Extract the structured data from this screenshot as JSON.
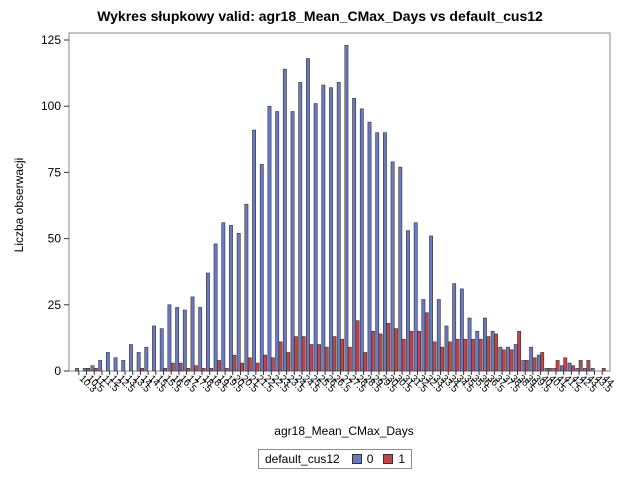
{
  "chart_data": {
    "type": "bar",
    "title": "Wykres słupkowy valid: agr18_Mean_CMax_Days vs default_cus12",
    "xlabel": "agr18_Mean_CMax_Days",
    "ylabel": "Liczba obserwacji",
    "ylim": [
      0,
      125
    ],
    "yticks": [
      0,
      25,
      50,
      75,
      100,
      125
    ],
    "grid": false,
    "legend": {
      "title": "default_cus12",
      "position": "bottom"
    },
    "categories": [
      "10.3",
      "10.5",
      "11",
      "11.5",
      "12",
      "12.5",
      "13",
      "13.5",
      "14",
      "14.5",
      "15",
      "15.5",
      "16",
      "16.5",
      "17",
      "17.5",
      "18",
      "18.5",
      "19",
      "19.5",
      "20",
      "20.5",
      "21",
      "21.5",
      "22",
      "22.5",
      "23",
      "23.5",
      "24",
      "24.5",
      "25",
      "25.5",
      "26",
      "26.5",
      "27",
      "27.5",
      "28",
      "28.5",
      "29",
      "29.5",
      "30",
      "30.5",
      "31",
      "31.5",
      "32",
      "32.5",
      "33",
      "33.5",
      "34",
      "34.5",
      "35",
      "35.5",
      "36",
      "36.5",
      "37",
      "37.5",
      "38",
      "38.5",
      "39",
      "39.5",
      "40",
      "40.5",
      "41",
      "41.5",
      "42",
      "42.5",
      "43",
      "43.5",
      "44"
    ],
    "series": [
      {
        "name": "0",
        "color": "#6a7ac2",
        "values": [
          1,
          1,
          2,
          4,
          7,
          5,
          4,
          10,
          7,
          9,
          17,
          16,
          25,
          24,
          23,
          28,
          24,
          37,
          48,
          56,
          55,
          52,
          63,
          91,
          78,
          100,
          98,
          114,
          98,
          109,
          118,
          101,
          108,
          107,
          109,
          123,
          103,
          99,
          94,
          90,
          90,
          79,
          77,
          53,
          56,
          27,
          51,
          27,
          17,
          33,
          31,
          20,
          15,
          20,
          15,
          9,
          9,
          10,
          4,
          9,
          6,
          1,
          1,
          2,
          3,
          1,
          1,
          1,
          0
        ]
      },
      {
        "name": "1",
        "color": "#c64446",
        "values": [
          0,
          1,
          1,
          0,
          0,
          0,
          0,
          0,
          1,
          0,
          0,
          1,
          3,
          3,
          1,
          2,
          1,
          1,
          4,
          1,
          6,
          3,
          5,
          3,
          6,
          5,
          11,
          7,
          13,
          13,
          10,
          10,
          9,
          13,
          12,
          9,
          19,
          7,
          15,
          14,
          18,
          16,
          12,
          15,
          15,
          22,
          11,
          9,
          11,
          12,
          12,
          12,
          12,
          13,
          14,
          8,
          8,
          15,
          4,
          5,
          7,
          1,
          4,
          5,
          2,
          4,
          4,
          0,
          1
        ]
      }
    ]
  }
}
